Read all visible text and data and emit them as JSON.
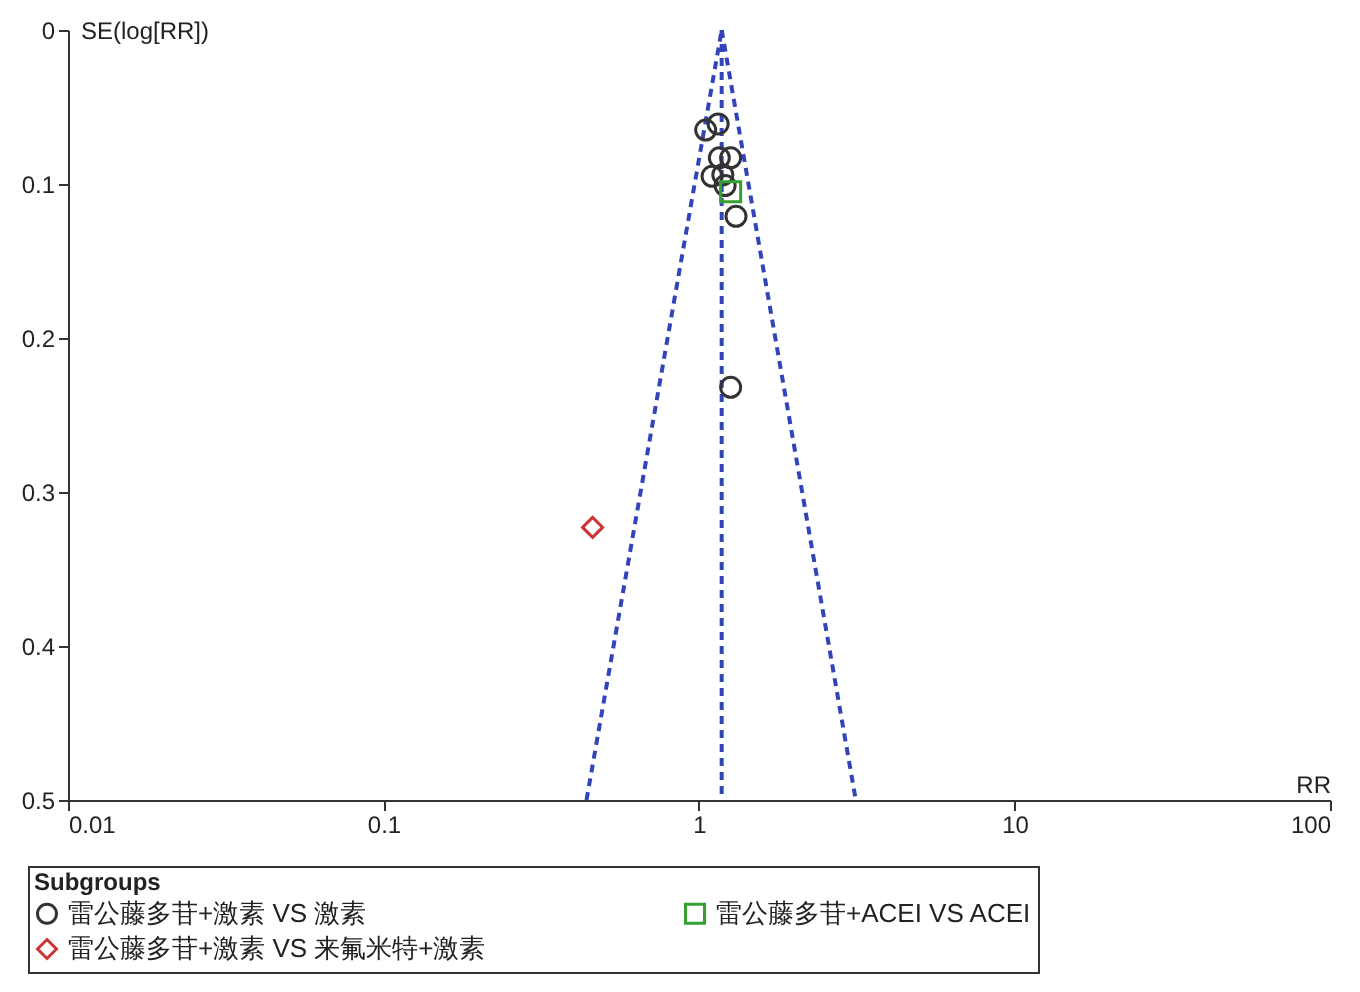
{
  "chart_data": {
    "type": "scatter",
    "xlabel": "RR",
    "ylabel": "SE(log[RR])",
    "legend_title": "Subgroups",
    "log": "x",
    "xlim": [
      0.01,
      100
    ],
    "xticks": [
      0.01,
      0.1,
      1,
      10,
      100
    ],
    "ylim": [
      0.5,
      0
    ],
    "yticks": [
      0,
      0.1,
      0.2,
      0.3,
      0.4,
      0.5
    ],
    "grid": false,
    "legend": "bottom",
    "series": [
      {
        "type": "line",
        "color": "#3344bb",
        "line_style": "dashed",
        "marker": "none",
        "x": [
          1.18,
          0.44
        ],
        "values": [
          0,
          0.5
        ]
      },
      {
        "type": "line",
        "color": "#3344bb",
        "line_style": "dashed",
        "marker": "none",
        "x": [
          1.18,
          1.18
        ],
        "values": [
          0,
          0.5
        ]
      },
      {
        "type": "line",
        "color": "#3344bb",
        "line_style": "dashed",
        "marker": "none",
        "x": [
          1.18,
          3.14
        ],
        "values": [
          0,
          0.5
        ]
      },
      {
        "name": "雷公藤多苷+激素 VS 激素",
        "color": "#333333",
        "marker": "circle",
        "x": [
          1.05,
          1.15,
          1.16,
          1.26,
          1.1,
          1.19,
          1.21,
          1.31,
          1.26
        ],
        "values": [
          0.065,
          0.061,
          0.083,
          0.083,
          0.095,
          0.094,
          0.101,
          0.121,
          0.232
        ]
      },
      {
        "name": "雷公藤多苷+激素 VS 来氟米特+激素",
        "color": "#cc3333",
        "marker": "diamond",
        "x": [
          0.46
        ],
        "values": [
          0.323
        ]
      },
      {
        "name": "雷公藤多苷+ACEI VS ACEI",
        "color": "#33a033",
        "marker": "square",
        "x": [
          1.26
        ],
        "values": [
          0.105
        ]
      }
    ]
  }
}
